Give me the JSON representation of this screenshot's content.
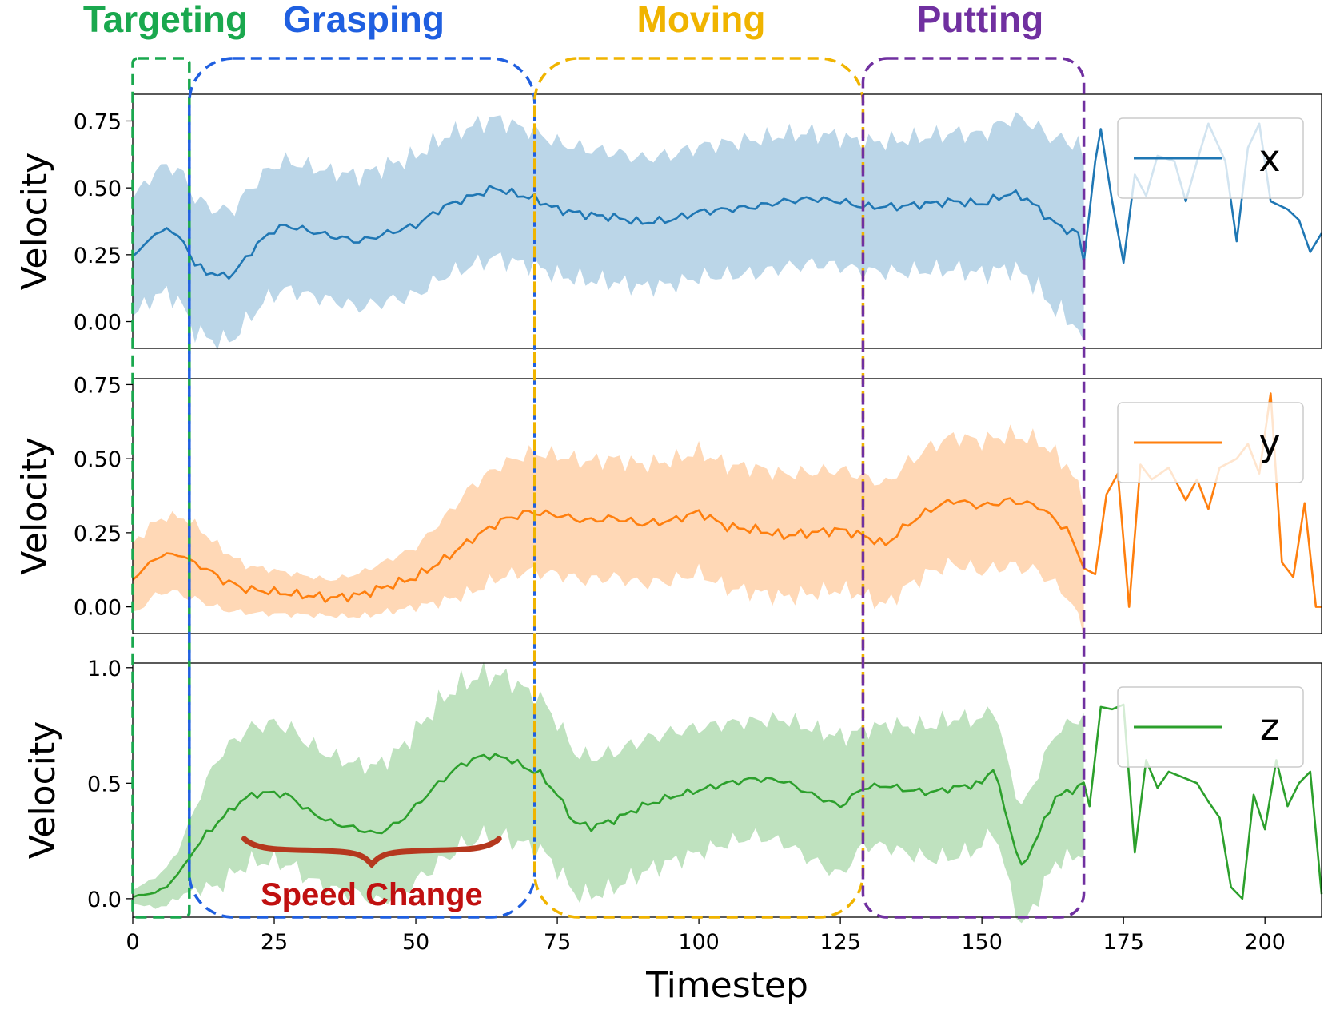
{
  "chart_data": {
    "type": "line",
    "x_label": "Timestep",
    "x_range": [
      0,
      210
    ],
    "x_ticks": [
      0,
      25,
      50,
      75,
      100,
      125,
      150,
      175,
      200
    ],
    "colors": {
      "x": "#1f77b4",
      "y": "#ff7f0e",
      "z": "#2ca02c",
      "targeting": "#1aa84e",
      "grasping": "#1f5fe0",
      "moving": "#f0b400",
      "putting": "#7030a0",
      "annotation": "#c01010",
      "brace": "#b5381e"
    },
    "phases": [
      {
        "name": "Targeting",
        "start": 0,
        "end": 10,
        "color_key": "targeting"
      },
      {
        "name": "Grasping",
        "start": 10,
        "end": 71,
        "color_key": "grasping"
      },
      {
        "name": "Moving",
        "start": 71,
        "end": 129,
        "color_key": "moving"
      },
      {
        "name": "Putting",
        "start": 129,
        "end": 168,
        "color_key": "putting"
      }
    ],
    "annotation": {
      "text": "Speed Change",
      "x_start": 18,
      "x_end": 65
    },
    "panels": [
      {
        "id": "x",
        "legend": "x",
        "y_label": "Velocity",
        "y_range": [
          -0.1,
          0.85
        ],
        "y_ticks": [
          0.0,
          0.25,
          0.5,
          0.75
        ],
        "y_tick_labels": [
          "0.00",
          "0.25",
          "0.50",
          "0.75"
        ],
        "band_end": 168,
        "key_points": [
          [
            0,
            0.24
          ],
          [
            3,
            0.31
          ],
          [
            6,
            0.35
          ],
          [
            9,
            0.3
          ],
          [
            11,
            0.21
          ],
          [
            15,
            0.17
          ],
          [
            18,
            0.18
          ],
          [
            20,
            0.24
          ],
          [
            24,
            0.33
          ],
          [
            27,
            0.36
          ],
          [
            31,
            0.34
          ],
          [
            35,
            0.32
          ],
          [
            40,
            0.3
          ],
          [
            45,
            0.33
          ],
          [
            50,
            0.36
          ],
          [
            55,
            0.43
          ],
          [
            60,
            0.47
          ],
          [
            64,
            0.5
          ],
          [
            67,
            0.48
          ],
          [
            71,
            0.46
          ],
          [
            75,
            0.42
          ],
          [
            80,
            0.4
          ],
          [
            85,
            0.39
          ],
          [
            90,
            0.37
          ],
          [
            95,
            0.38
          ],
          [
            100,
            0.41
          ],
          [
            105,
            0.42
          ],
          [
            110,
            0.43
          ],
          [
            115,
            0.45
          ],
          [
            120,
            0.46
          ],
          [
            125,
            0.45
          ],
          [
            129,
            0.43
          ],
          [
            135,
            0.43
          ],
          [
            140,
            0.44
          ],
          [
            145,
            0.45
          ],
          [
            150,
            0.44
          ],
          [
            155,
            0.48
          ],
          [
            158,
            0.46
          ],
          [
            161,
            0.4
          ],
          [
            164,
            0.35
          ],
          [
            167,
            0.33
          ],
          [
            168,
            0.22
          ],
          [
            170,
            0.6
          ],
          [
            171,
            0.72
          ],
          [
            173,
            0.45
          ],
          [
            175,
            0.22
          ],
          [
            177,
            0.55
          ],
          [
            179,
            0.47
          ],
          [
            181,
            0.62
          ],
          [
            184,
            0.6
          ],
          [
            186,
            0.45
          ],
          [
            188,
            0.6
          ],
          [
            190,
            0.74
          ],
          [
            193,
            0.6
          ],
          [
            195,
            0.3
          ],
          [
            197,
            0.65
          ],
          [
            199,
            0.74
          ],
          [
            201,
            0.45
          ],
          [
            204,
            0.42
          ],
          [
            206,
            0.38
          ],
          [
            208,
            0.26
          ],
          [
            210,
            0.33
          ]
        ],
        "key_spread": [
          [
            0,
            0.22
          ],
          [
            10,
            0.25
          ],
          [
            20,
            0.24
          ],
          [
            35,
            0.24
          ],
          [
            50,
            0.26
          ],
          [
            65,
            0.26
          ],
          [
            71,
            0.25
          ],
          [
            90,
            0.24
          ],
          [
            110,
            0.25
          ],
          [
            129,
            0.24
          ],
          [
            150,
            0.26
          ],
          [
            160,
            0.3
          ],
          [
            168,
            0.35
          ]
        ]
      },
      {
        "id": "y",
        "legend": "y",
        "y_label": "Velocity",
        "y_range": [
          -0.09,
          0.77
        ],
        "y_ticks": [
          0.0,
          0.25,
          0.5,
          0.75
        ],
        "y_tick_labels": [
          "0.00",
          "0.25",
          "0.50",
          "0.75"
        ],
        "band_end": 168,
        "key_points": [
          [
            0,
            0.09
          ],
          [
            3,
            0.15
          ],
          [
            6,
            0.18
          ],
          [
            9,
            0.17
          ],
          [
            12,
            0.14
          ],
          [
            16,
            0.09
          ],
          [
            20,
            0.06
          ],
          [
            25,
            0.05
          ],
          [
            30,
            0.04
          ],
          [
            35,
            0.03
          ],
          [
            40,
            0.04
          ],
          [
            45,
            0.07
          ],
          [
            50,
            0.1
          ],
          [
            55,
            0.16
          ],
          [
            60,
            0.23
          ],
          [
            65,
            0.29
          ],
          [
            70,
            0.32
          ],
          [
            75,
            0.31
          ],
          [
            80,
            0.29
          ],
          [
            85,
            0.3
          ],
          [
            90,
            0.28
          ],
          [
            95,
            0.29
          ],
          [
            100,
            0.32
          ],
          [
            105,
            0.27
          ],
          [
            110,
            0.26
          ],
          [
            115,
            0.24
          ],
          [
            120,
            0.25
          ],
          [
            125,
            0.26
          ],
          [
            129,
            0.24
          ],
          [
            133,
            0.21
          ],
          [
            137,
            0.28
          ],
          [
            141,
            0.33
          ],
          [
            145,
            0.36
          ],
          [
            150,
            0.34
          ],
          [
            155,
            0.36
          ],
          [
            160,
            0.34
          ],
          [
            165,
            0.26
          ],
          [
            168,
            0.14
          ],
          [
            170,
            0.11
          ],
          [
            172,
            0.38
          ],
          [
            174,
            0.45
          ],
          [
            176,
            0.0
          ],
          [
            178,
            0.48
          ],
          [
            180,
            0.43
          ],
          [
            183,
            0.47
          ],
          [
            186,
            0.36
          ],
          [
            188,
            0.43
          ],
          [
            190,
            0.33
          ],
          [
            192,
            0.47
          ],
          [
            195,
            0.5
          ],
          [
            197,
            0.55
          ],
          [
            199,
            0.45
          ],
          [
            201,
            0.72
          ],
          [
            203,
            0.15
          ],
          [
            205,
            0.1
          ],
          [
            207,
            0.35
          ],
          [
            209,
            0.0
          ],
          [
            210,
            0.0
          ]
        ],
        "key_spread": [
          [
            0,
            0.12
          ],
          [
            10,
            0.13
          ],
          [
            20,
            0.08
          ],
          [
            35,
            0.06
          ],
          [
            50,
            0.1
          ],
          [
            60,
            0.18
          ],
          [
            71,
            0.2
          ],
          [
            90,
            0.2
          ],
          [
            110,
            0.21
          ],
          [
            129,
            0.2
          ],
          [
            150,
            0.22
          ],
          [
            168,
            0.22
          ]
        ]
      },
      {
        "id": "z",
        "legend": "z",
        "y_label": "Velocity",
        "y_range": [
          -0.08,
          1.02
        ],
        "y_ticks": [
          0.0,
          0.5,
          1.0
        ],
        "y_tick_labels": [
          "0.0",
          "0.5",
          "1.0"
        ],
        "band_end": 168,
        "key_points": [
          [
            0,
            0.01
          ],
          [
            3,
            0.02
          ],
          [
            6,
            0.05
          ],
          [
            9,
            0.14
          ],
          [
            12,
            0.25
          ],
          [
            15,
            0.33
          ],
          [
            18,
            0.4
          ],
          [
            21,
            0.45
          ],
          [
            25,
            0.46
          ],
          [
            28,
            0.44
          ],
          [
            31,
            0.38
          ],
          [
            35,
            0.33
          ],
          [
            40,
            0.3
          ],
          [
            43,
            0.28
          ],
          [
            47,
            0.33
          ],
          [
            50,
            0.4
          ],
          [
            54,
            0.5
          ],
          [
            58,
            0.58
          ],
          [
            62,
            0.62
          ],
          [
            66,
            0.61
          ],
          [
            70,
            0.56
          ],
          [
            72,
            0.54
          ],
          [
            75,
            0.45
          ],
          [
            78,
            0.33
          ],
          [
            81,
            0.31
          ],
          [
            85,
            0.34
          ],
          [
            90,
            0.4
          ],
          [
            95,
            0.44
          ],
          [
            100,
            0.47
          ],
          [
            105,
            0.5
          ],
          [
            110,
            0.52
          ],
          [
            115,
            0.51
          ],
          [
            120,
            0.45
          ],
          [
            125,
            0.4
          ],
          [
            129,
            0.48
          ],
          [
            133,
            0.49
          ],
          [
            137,
            0.47
          ],
          [
            141,
            0.46
          ],
          [
            145,
            0.48
          ],
          [
            150,
            0.5
          ],
          [
            152,
            0.57
          ],
          [
            155,
            0.3
          ],
          [
            157,
            0.13
          ],
          [
            160,
            0.28
          ],
          [
            163,
            0.44
          ],
          [
            166,
            0.47
          ],
          [
            168,
            0.5
          ],
          [
            169,
            0.4
          ],
          [
            171,
            0.83
          ],
          [
            173,
            0.82
          ],
          [
            175,
            0.84
          ],
          [
            177,
            0.2
          ],
          [
            179,
            0.6
          ],
          [
            181,
            0.48
          ],
          [
            183,
            0.55
          ],
          [
            186,
            0.52
          ],
          [
            188,
            0.5
          ],
          [
            190,
            0.42
          ],
          [
            192,
            0.35
          ],
          [
            194,
            0.05
          ],
          [
            196,
            0.0
          ],
          [
            198,
            0.45
          ],
          [
            200,
            0.3
          ],
          [
            202,
            0.6
          ],
          [
            204,
            0.4
          ],
          [
            206,
            0.5
          ],
          [
            208,
            0.55
          ],
          [
            210,
            0.02
          ]
        ],
        "key_spread": [
          [
            0,
            0.03
          ],
          [
            8,
            0.1
          ],
          [
            15,
            0.28
          ],
          [
            25,
            0.3
          ],
          [
            40,
            0.28
          ],
          [
            55,
            0.35
          ],
          [
            65,
            0.35
          ],
          [
            71,
            0.33
          ],
          [
            80,
            0.3
          ],
          [
            95,
            0.28
          ],
          [
            110,
            0.25
          ],
          [
            125,
            0.3
          ],
          [
            129,
            0.25
          ],
          [
            145,
            0.3
          ],
          [
            155,
            0.25
          ],
          [
            168,
            0.3
          ]
        ]
      }
    ]
  }
}
